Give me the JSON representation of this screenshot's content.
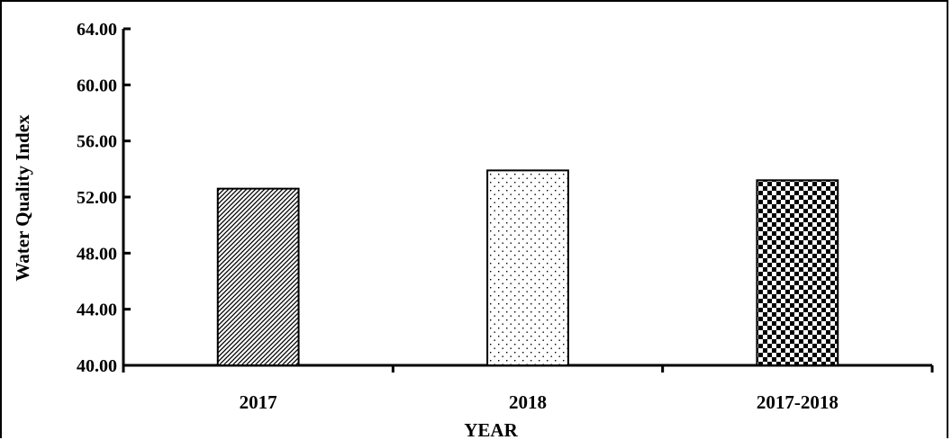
{
  "chart_data": {
    "type": "bar",
    "title": "",
    "xlabel": "YEAR",
    "ylabel": "Water Quality Index",
    "categories": [
      "2017",
      "2018",
      "2017-2018"
    ],
    "values": [
      52.6,
      53.9,
      53.2
    ],
    "ylim": [
      40,
      64
    ],
    "yticks": [
      "40.00",
      "44.00",
      "48.00",
      "52.00",
      "56.00",
      "60.00",
      "64.00"
    ],
    "grid": false,
    "legend": "none",
    "bar_fills": [
      "diagonal-hatch",
      "dots",
      "checkerboard"
    ],
    "colors": {
      "bar_stroke": "#000000",
      "pattern": "#000000",
      "background": "#ffffff"
    }
  }
}
